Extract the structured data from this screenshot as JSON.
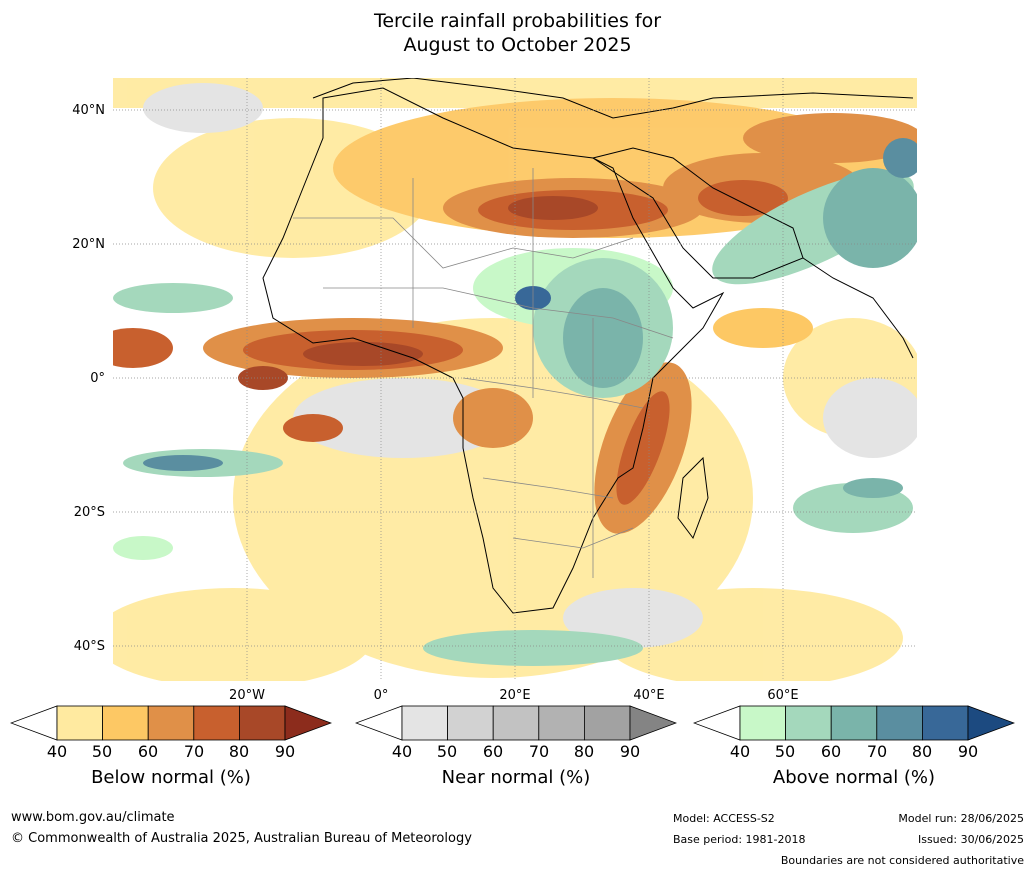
{
  "title": {
    "line1": "Tercile rainfall probabilities for",
    "line2": "August to October 2025"
  },
  "map": {
    "lat_labels": [
      "40°N",
      "20°N",
      "0°",
      "20°S",
      "40°S"
    ],
    "lon_labels": [
      "20°W",
      "0°",
      "20°E",
      "40°E",
      "60°E"
    ]
  },
  "legends": [
    {
      "caption": "Below normal (%)",
      "ticks": [
        "40",
        "50",
        "60",
        "70",
        "80",
        "90"
      ],
      "colors": [
        "#ffffff",
        "#ffeaa0",
        "#fdc864",
        "#e09048",
        "#c8602e",
        "#a84828",
        "#8c2c1c"
      ]
    },
    {
      "caption": "Near normal (%)",
      "ticks": [
        "40",
        "50",
        "60",
        "70",
        "80",
        "90"
      ],
      "colors": [
        "#ffffff",
        "#e4e4e4",
        "#d2d2d2",
        "#c2c2c2",
        "#b2b2b2",
        "#a2a2a2",
        "#848484"
      ]
    },
    {
      "caption": "Above normal (%)",
      "ticks": [
        "40",
        "50",
        "60",
        "70",
        "80",
        "90"
      ],
      "colors": [
        "#ffffff",
        "#c8f8c8",
        "#a4d8bc",
        "#7ab4aa",
        "#5a8ea0",
        "#386898",
        "#1c4a80"
      ]
    }
  ],
  "footer": {
    "website": "www.bom.gov.au/climate",
    "copyright": "© Commonwealth of Australia 2025, Australian Bureau of Meteorology",
    "model": "Model: ACCESS-S2",
    "base_period": "Base period: 1981-2018",
    "model_run": "Model run: 28/06/2025",
    "issued": "Issued: 30/06/2025",
    "boundaries_note": "Boundaries are not considered authoritative"
  }
}
